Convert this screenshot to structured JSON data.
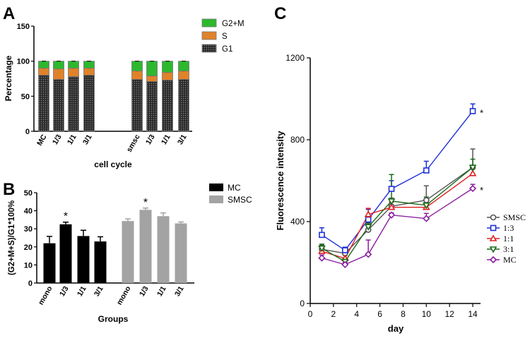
{
  "panels": {
    "A": "A",
    "B": "B",
    "C": "C"
  },
  "colors": {
    "g1": "#4a4a4a",
    "s": "#e0822a",
    "g2m": "#2db82d",
    "mc": "#000000",
    "smsc": "#a3a3a3",
    "line_smsc": "#555555",
    "line_13": "#1f2fd6",
    "line_11": "#e02020",
    "line_31": "#1a6a1a",
    "line_mc": "#8a1fa0"
  },
  "chart_data": [
    {
      "type": "bar",
      "subtype": "stacked",
      "ylabel": "Percentage",
      "xlabel": "cell cycle",
      "ylim": [
        0,
        150
      ],
      "yticks": [
        "0",
        "50",
        "100",
        "150"
      ],
      "categories": [
        "MC",
        "1/3",
        "1/1",
        "3/1",
        "smsc",
        "1/3",
        "1/1",
        "3/1"
      ],
      "series": [
        {
          "name": "G1",
          "values": [
            80,
            74,
            78,
            80,
            74,
            71,
            73,
            74
          ]
        },
        {
          "name": "S",
          "values": [
            10,
            15,
            12,
            10,
            12,
            8,
            11,
            12
          ]
        },
        {
          "name": "G2+M",
          "values": [
            10,
            11,
            10,
            10,
            14,
            21,
            16,
            14
          ]
        }
      ],
      "legend": [
        "G2+M",
        "S",
        "G1"
      ]
    },
    {
      "type": "bar",
      "ylabel": "(G2+M+S)/G1*100%",
      "xlabel": "Groups",
      "ylim": [
        0,
        50
      ],
      "yticks": [
        "0",
        "10",
        "20",
        "30",
        "40",
        "50"
      ],
      "categories": [
        "mono",
        "1/3",
        "1/1",
        "3/1",
        "mono",
        "1/3",
        "1/1",
        "3/1"
      ],
      "groups": [
        "MC",
        "MC",
        "MC",
        "MC",
        "SMSC",
        "SMSC",
        "SMSC",
        "SMSC"
      ],
      "values": [
        22.0,
        32.5,
        26.0,
        23.0,
        34.3,
        40.5,
        37.0,
        33.0
      ],
      "errors": [
        3.8,
        1.2,
        3.2,
        2.6,
        1.2,
        1.0,
        1.8,
        0.8
      ],
      "significant": [
        false,
        true,
        false,
        false,
        false,
        true,
        false,
        false
      ],
      "star": "*",
      "legend": [
        "MC",
        "SMSC"
      ]
    },
    {
      "type": "line",
      "ylabel": "Fluorescence intensity",
      "xlabel": "day",
      "xlim": [
        0,
        14
      ],
      "ylim": [
        0,
        1200
      ],
      "xticks": [
        "0",
        "2",
        "4",
        "6",
        "8",
        "10",
        "12",
        "14"
      ],
      "yticks": [
        "0",
        "400",
        "800",
        "1200"
      ],
      "x": [
        1,
        3,
        5,
        7,
        10,
        14
      ],
      "series": [
        {
          "name": "SMSC",
          "values": [
            265,
            245,
            360,
            475,
            505,
            665
          ],
          "errors": [
            20,
            15,
            30,
            40,
            70,
            90
          ]
        },
        {
          "name": "1:3",
          "values": [
            335,
            260,
            410,
            560,
            650,
            940
          ],
          "errors": [
            35,
            15,
            50,
            40,
            45,
            35
          ]
        },
        {
          "name": "1:1",
          "values": [
            255,
            220,
            435,
            470,
            470,
            635
          ],
          "errors": [
            20,
            15,
            30,
            25,
            25,
            35
          ]
        },
        {
          "name": "3:1",
          "values": [
            270,
            205,
            375,
            500,
            480,
            665
          ],
          "errors": [
            20,
            15,
            20,
            130,
            40,
            40
          ]
        },
        {
          "name": "MC",
          "values": [
            222,
            190,
            240,
            432,
            415,
            562
          ],
          "errors": [
            15,
            10,
            70,
            10,
            25,
            20
          ]
        }
      ],
      "annotations": [
        "*",
        "*"
      ]
    }
  ]
}
